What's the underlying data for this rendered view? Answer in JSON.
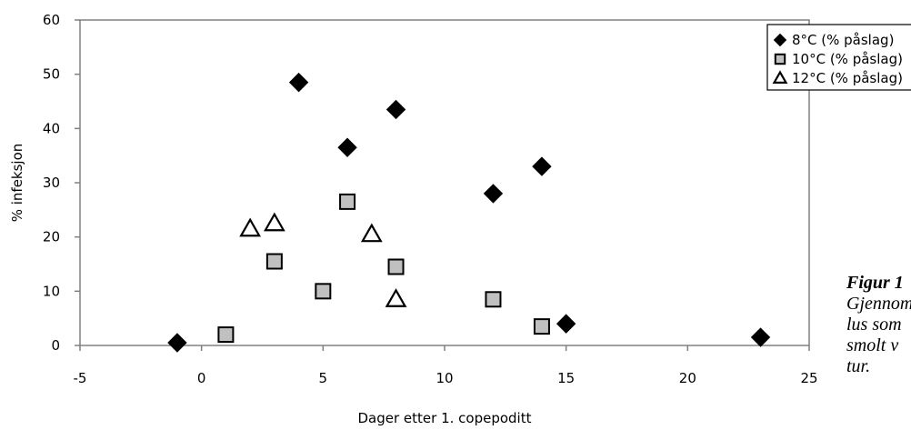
{
  "chart_data": {
    "type": "scatter",
    "xlabel": "Dager etter 1. copepoditt",
    "ylabel": "% infeksjon",
    "xlim": [
      -5,
      25
    ],
    "ylim": [
      0,
      60
    ],
    "xticks": [
      "-5",
      "0",
      "5",
      "10",
      "15",
      "20",
      "25"
    ],
    "yticks": [
      "0",
      "10",
      "20",
      "30",
      "40",
      "50",
      "60"
    ],
    "grid": false,
    "legend_position": "top-right",
    "series": [
      {
        "name": "8°C (% påslag)",
        "marker": "diamond",
        "color": "#000000",
        "points": [
          [
            -1,
            0.5
          ],
          [
            4,
            48.5
          ],
          [
            6,
            36.5
          ],
          [
            8,
            43.5
          ],
          [
            12,
            28
          ],
          [
            14,
            33
          ],
          [
            15,
            4
          ],
          [
            23,
            1.5
          ]
        ]
      },
      {
        "name": "10°C (% påslag)",
        "marker": "square",
        "color": "#c0c0c0",
        "points": [
          [
            1,
            2
          ],
          [
            3,
            15.5
          ],
          [
            5,
            10
          ],
          [
            6,
            26.5
          ],
          [
            8,
            14.5
          ],
          [
            12,
            8.5
          ],
          [
            14,
            3.5
          ]
        ]
      },
      {
        "name": "12°C (% påslag)",
        "marker": "triangle",
        "color": "#ffffff",
        "points": [
          [
            2,
            21.5
          ],
          [
            3,
            22.5
          ],
          [
            7,
            20.5
          ],
          [
            8,
            8.5
          ]
        ]
      }
    ]
  },
  "caption": {
    "title": "Figur 1",
    "lines": [
      "Gjennom",
      "lus som",
      "smolt v",
      "tur."
    ]
  }
}
